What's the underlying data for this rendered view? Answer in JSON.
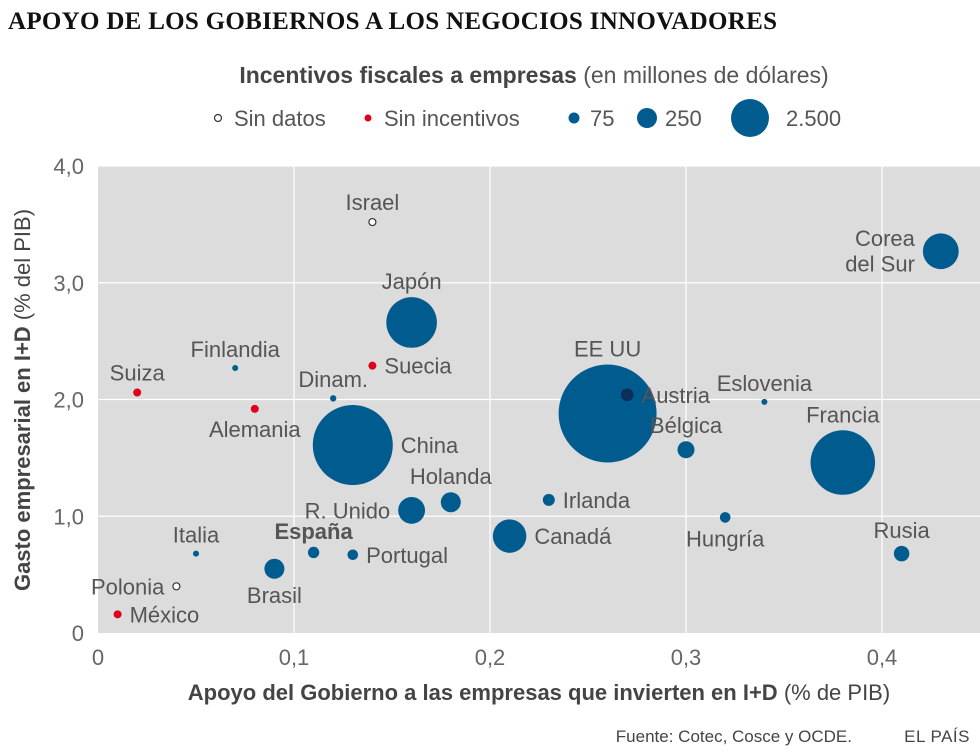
{
  "header": {
    "title": "APOYO DE LOS GOBIERNOS A LOS NEGOCIOS INNOVADORES",
    "legend_title_bold": "Incentivos fiscales a empresas",
    "legend_title_rest": "(en millones de dólares)"
  },
  "legend": {
    "no_data": "Sin datos",
    "no_incentives": "Sin incentivos",
    "sizes": [
      {
        "label": "75",
        "value": 75
      },
      {
        "label": "250",
        "value": 250
      },
      {
        "label": "2.500",
        "value": 2500
      }
    ]
  },
  "colors": {
    "bubble": "#005b8e",
    "bubble_dark": "#0b2f5a",
    "no_incentive": "#e0001b",
    "plot_bg": "#dcdcdc",
    "grid": "#ffffff",
    "text": "#444444"
  },
  "chart_data": {
    "type": "scatter",
    "title": "APOYO DE LOS GOBIERNOS A LOS NEGOCIOS INNOVADORES",
    "xlabel_bold": "Apoyo del Gobierno a las empresas que invierten en I+D",
    "xlabel_rest": "(% de PIB)",
    "ylabel_bold": "Gasto empresarial en I+D",
    "ylabel_rest": "(% del PIB)",
    "xlim": [
      0,
      0.45
    ],
    "ylim": [
      0,
      4.0
    ],
    "xticks": [
      {
        "value": 0,
        "label": "0"
      },
      {
        "value": 0.1,
        "label": "0,1"
      },
      {
        "value": 0.2,
        "label": "0,2"
      },
      {
        "value": 0.3,
        "label": "0,3"
      },
      {
        "value": 0.4,
        "label": "0,4"
      }
    ],
    "yticks": [
      {
        "value": 0,
        "label": "0"
      },
      {
        "value": 1,
        "label": "1,0"
      },
      {
        "value": 2,
        "label": "2,0"
      },
      {
        "value": 3,
        "label": "3,0"
      },
      {
        "value": 4,
        "label": "4,0"
      }
    ],
    "points": [
      {
        "name": "Israel",
        "x": 0.14,
        "y": 3.52,
        "incentive": null,
        "kind": "nodata",
        "label_pos": "above"
      },
      {
        "name": "Corea\ndel Sur",
        "x": 0.43,
        "y": 3.27,
        "incentive": 800,
        "kind": "bubble",
        "label_pos": "left"
      },
      {
        "name": "Japón",
        "x": 0.16,
        "y": 2.66,
        "incentive": 1600,
        "kind": "bubble",
        "label_pos": "above"
      },
      {
        "name": "Finlandia",
        "x": 0.07,
        "y": 2.27,
        "incentive": 20,
        "kind": "bubble",
        "label_pos": "above"
      },
      {
        "name": "Suecia",
        "x": 0.14,
        "y": 2.29,
        "incentive": 0,
        "kind": "none",
        "label_pos": "right"
      },
      {
        "name": "Suiza",
        "x": 0.02,
        "y": 2.06,
        "incentive": 0,
        "kind": "none",
        "label_pos": "above"
      },
      {
        "name": "Dinam.",
        "x": 0.12,
        "y": 2.01,
        "incentive": 25,
        "kind": "bubble",
        "label_pos": "above"
      },
      {
        "name": "Alemania",
        "x": 0.08,
        "y": 1.92,
        "incentive": 0,
        "kind": "none",
        "label_pos": "below"
      },
      {
        "name": "EE UU",
        "x": 0.26,
        "y": 1.88,
        "incentive": 6000,
        "kind": "bubble",
        "label_pos": "above"
      },
      {
        "name": "Austria",
        "x": 0.27,
        "y": 2.04,
        "incentive": 100,
        "kind": "bubble_dark",
        "label_pos": "right"
      },
      {
        "name": "Eslovenia",
        "x": 0.34,
        "y": 1.98,
        "incentive": 15,
        "kind": "bubble",
        "label_pos": "above"
      },
      {
        "name": "China",
        "x": 0.13,
        "y": 1.61,
        "incentive": 4000,
        "kind": "bubble",
        "label_pos": "right"
      },
      {
        "name": "Bélgica",
        "x": 0.3,
        "y": 1.57,
        "incentive": 180,
        "kind": "bubble",
        "label_pos": "above"
      },
      {
        "name": "Francia",
        "x": 0.38,
        "y": 1.46,
        "incentive": 2600,
        "kind": "bubble",
        "label_pos": "above"
      },
      {
        "name": "Holanda",
        "x": 0.18,
        "y": 1.12,
        "incentive": 250,
        "kind": "bubble",
        "label_pos": "above"
      },
      {
        "name": "Irlanda",
        "x": 0.23,
        "y": 1.14,
        "incentive": 90,
        "kind": "bubble",
        "label_pos": "right"
      },
      {
        "name": "R. Unido",
        "x": 0.16,
        "y": 1.05,
        "incentive": 450,
        "kind": "bubble",
        "label_pos": "left"
      },
      {
        "name": "Hungría",
        "x": 0.32,
        "y": 0.99,
        "incentive": 70,
        "kind": "bubble",
        "label_pos": "below"
      },
      {
        "name": "Canadá",
        "x": 0.21,
        "y": 0.83,
        "incentive": 700,
        "kind": "bubble",
        "label_pos": "right"
      },
      {
        "name": "Italia",
        "x": 0.05,
        "y": 0.68,
        "incentive": 5,
        "kind": "bubble",
        "label_pos": "above"
      },
      {
        "name": "España",
        "x": 0.11,
        "y": 0.69,
        "incentive": 80,
        "kind": "bubble",
        "label_pos": "above",
        "bold": true
      },
      {
        "name": "Portugal",
        "x": 0.13,
        "y": 0.67,
        "incentive": 70,
        "kind": "bubble",
        "label_pos": "right"
      },
      {
        "name": "Rusia",
        "x": 0.41,
        "y": 0.68,
        "incentive": 150,
        "kind": "bubble",
        "label_pos": "above"
      },
      {
        "name": "Brasil",
        "x": 0.09,
        "y": 0.55,
        "incentive": 250,
        "kind": "bubble",
        "label_pos": "below"
      },
      {
        "name": "Polonia",
        "x": 0.04,
        "y": 0.4,
        "incentive": null,
        "kind": "nodata",
        "label_pos": "left"
      },
      {
        "name": "México",
        "x": 0.01,
        "y": 0.16,
        "incentive": 0,
        "kind": "none",
        "label_pos": "right"
      }
    ]
  },
  "footer": {
    "source": "Fuente: Cotec, Cosce y OCDE.",
    "brand": "EL PAÍS"
  }
}
